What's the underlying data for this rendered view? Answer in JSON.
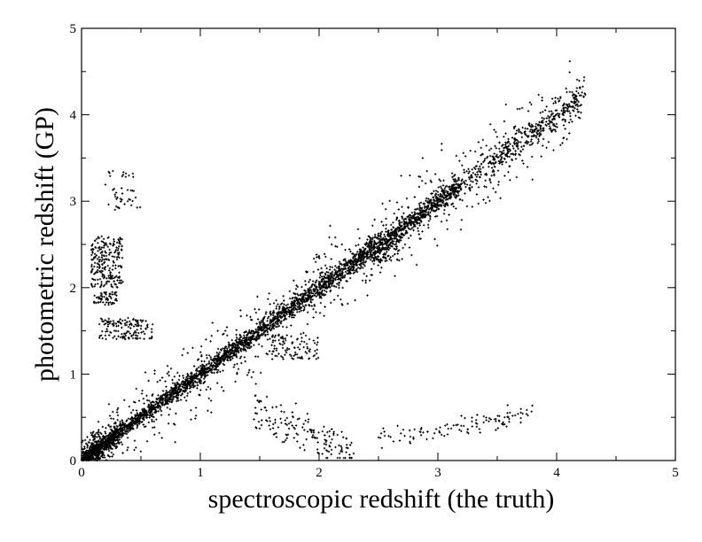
{
  "chart_data": {
    "type": "scatter",
    "xlabel": "spectroscopic redshift (the truth)",
    "ylabel": "photometric redshift (GP)",
    "xlim": [
      0,
      5
    ],
    "ylim": [
      0,
      5
    ],
    "xticks": [
      "0",
      "1",
      "2",
      "3",
      "4",
      "5"
    ],
    "yticks": [
      "0",
      "1",
      "2",
      "3",
      "4",
      "5"
    ],
    "grid": false,
    "legend": "none",
    "marker": "plus",
    "point_color": "#000000",
    "series": [
      {
        "values_note": "",
        "x": [
          0.02,
          0.05,
          0.08,
          0.1,
          0.13,
          0.16,
          0.2,
          0.25,
          0.3,
          0.35,
          0.4,
          0.45,
          0.5,
          0.6,
          0.7,
          0.8,
          0.9,
          1.0,
          1.1,
          1.2,
          1.3,
          1.4,
          1.5,
          1.6,
          1.7,
          1.8,
          1.9,
          2.0,
          2.1,
          2.2,
          2.3,
          2.4,
          2.5,
          2.6,
          2.7,
          2.8,
          2.9,
          3.0,
          3.1,
          3.2,
          3.3,
          3.4,
          3.5,
          3.6,
          3.7,
          3.8,
          3.9,
          4.0,
          4.1,
          4.2
        ],
        "y": [
          0.03,
          0.06,
          0.09,
          0.12,
          0.15,
          0.18,
          0.21,
          0.26,
          0.31,
          0.36,
          0.41,
          0.46,
          0.51,
          0.61,
          0.71,
          0.82,
          0.91,
          1.01,
          1.1,
          1.2,
          1.31,
          1.4,
          1.5,
          1.61,
          1.7,
          1.81,
          1.9,
          2.01,
          2.1,
          2.2,
          2.31,
          2.4,
          2.5,
          2.61,
          2.7,
          2.8,
          2.9,
          3.0,
          3.1,
          3.19,
          3.3,
          3.4,
          3.5,
          3.58,
          3.67,
          3.75,
          3.85,
          3.95,
          4.05,
          4.2
        ]
      }
    ],
    "density_model": {
      "main_relation": {
        "x_range": [
          0.0,
          4.25
        ],
        "slope": 1.0,
        "scatter": 0.06
      },
      "clusters": [
        {
          "x": [
            0.08,
            0.35
          ],
          "y": [
            2.0,
            2.6
          ]
        },
        {
          "x": [
            0.15,
            0.6
          ],
          "y": [
            1.4,
            1.65
          ]
        },
        {
          "x": [
            0.1,
            0.3
          ],
          "y": [
            1.8,
            1.95
          ]
        },
        {
          "x": [
            0.2,
            0.5
          ],
          "y": [
            2.9,
            3.35
          ]
        },
        {
          "x": [
            1.45,
            2.3
          ],
          "y": [
            0.05,
            0.7
          ]
        },
        {
          "x": [
            2.5,
            3.8
          ],
          "y": [
            0.2,
            0.6
          ]
        },
        {
          "x": [
            1.6,
            2.0
          ],
          "y": [
            1.15,
            1.45
          ]
        },
        {
          "x": [
            2.4,
            2.7
          ],
          "y": [
            2.3,
            2.6
          ]
        }
      ]
    }
  }
}
